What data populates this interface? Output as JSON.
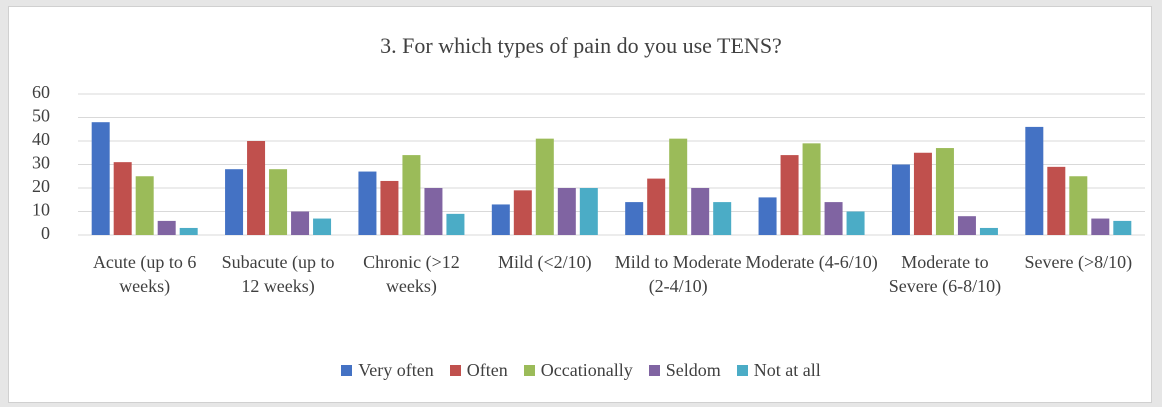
{
  "chart_data": {
    "type": "bar",
    "title": "3. For which types of pain do you use TENS?",
    "categories": [
      "Acute (up to 6 weeks)",
      "Subacute (up to 12 weeks)",
      "Chronic (>12 weeks)",
      "Mild (<2/10)",
      "Mild to Moderate (2-4/10)",
      "Moderate (4-6/10)",
      "Moderate to Severe (6-8/10)",
      "Severe (>8/10)"
    ],
    "series": [
      {
        "name": "Very often",
        "color": "#4472c4",
        "values": [
          48,
          28,
          27,
          13,
          14,
          16,
          30,
          46
        ]
      },
      {
        "name": "Often",
        "color": "#c0504d",
        "values": [
          31,
          40,
          23,
          19,
          24,
          34,
          35,
          29
        ]
      },
      {
        "name": "Occationally",
        "color": "#9bbb59",
        "values": [
          25,
          28,
          34,
          41,
          41,
          39,
          37,
          25
        ]
      },
      {
        "name": "Seldom",
        "color": "#8064a2",
        "values": [
          6,
          10,
          20,
          20,
          20,
          14,
          8,
          7
        ]
      },
      {
        "name": "Not at all",
        "color": "#4bacc6",
        "values": [
          3,
          7,
          9,
          20,
          14,
          10,
          3,
          6
        ]
      }
    ],
    "ylim": [
      0,
      60
    ],
    "yticks": [
      0,
      10,
      20,
      30,
      40,
      50,
      60
    ],
    "grid": true,
    "legend": "bottom"
  }
}
